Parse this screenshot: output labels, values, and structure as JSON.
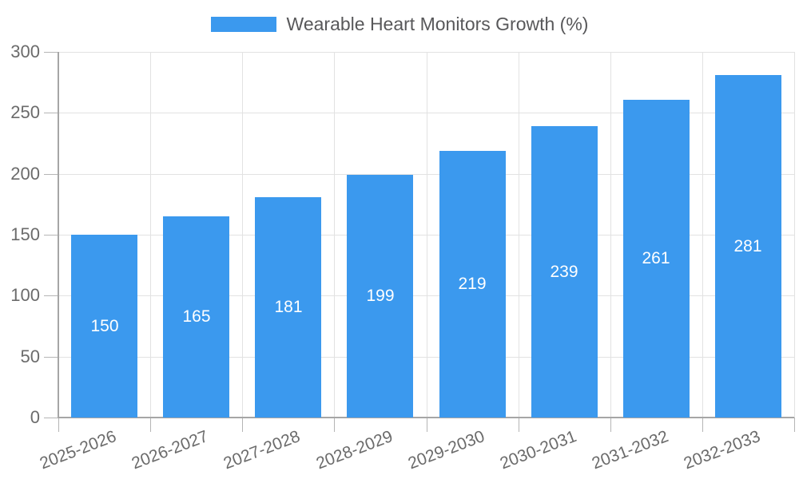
{
  "chart_data": {
    "type": "bar",
    "title": "Wearable Heart Monitors Growth (%)",
    "categories": [
      "2025-2026",
      "2026-2027",
      "2027-2028",
      "2028-2029",
      "2029-2030",
      "2030-2031",
      "2031-2032",
      "2032-2033"
    ],
    "values": [
      150,
      165,
      181,
      199,
      219,
      239,
      261,
      281
    ],
    "xlabel": "",
    "ylabel": "",
    "ylim": [
      0,
      300
    ],
    "yticks": [
      0,
      50,
      100,
      150,
      200,
      250,
      300
    ],
    "grid": true,
    "legend_position": "top",
    "value_labels_position": "inside-center"
  },
  "legend": {
    "label": "Wearable Heart Monitors Growth (%)"
  },
  "colors": {
    "bar": "#3b99ee",
    "grid": "#e2e2e2",
    "axis": "#a6a6a6",
    "tick": "#b5b5b5",
    "axis_text": "#6b6b6b",
    "legend_text": "#58585a",
    "value_text": "#ffffff",
    "background": "#ffffff"
  }
}
